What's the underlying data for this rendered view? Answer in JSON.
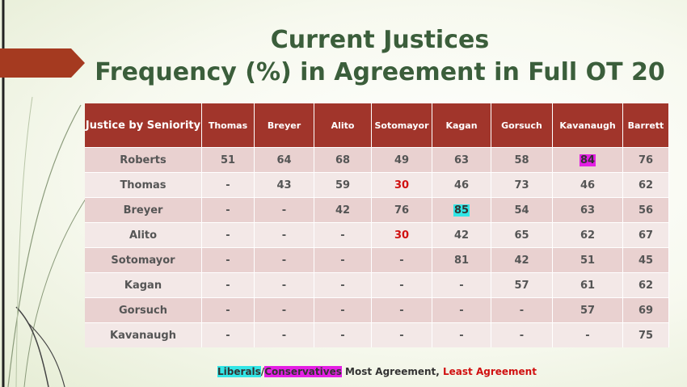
{
  "title": {
    "lines": [
      "Current Justices",
      "Frequency (%) in Agreement in Full OT 20"
    ]
  },
  "table": {
    "header": [
      "Justice by Seniority",
      "Thomas",
      "Breyer",
      "Alito",
      "Sotomayor",
      "Kagan",
      "Gorsuch",
      "Kavanaugh",
      "Barrett"
    ],
    "rows": [
      {
        "cells": [
          {
            "text": "Roberts"
          },
          {
            "text": "51"
          },
          {
            "text": "64"
          },
          {
            "text": "68"
          },
          {
            "text": "49"
          },
          {
            "text": "63"
          },
          {
            "text": "58"
          },
          {
            "text": "84",
            "background": "#e41fe4"
          },
          {
            "text": "76"
          }
        ]
      },
      {
        "cells": [
          {
            "text": "Thomas"
          },
          {
            "text": "-"
          },
          {
            "text": "43"
          },
          {
            "text": "59"
          },
          {
            "text": "30",
            "color": "#d01010"
          },
          {
            "text": "46"
          },
          {
            "text": "73"
          },
          {
            "text": "46"
          },
          {
            "text": "62"
          }
        ]
      },
      {
        "cells": [
          {
            "text": "Breyer"
          },
          {
            "text": "-"
          },
          {
            "text": "-"
          },
          {
            "text": "42"
          },
          {
            "text": "76"
          },
          {
            "text": "85",
            "background": "#33e6e6"
          },
          {
            "text": "54"
          },
          {
            "text": "63"
          },
          {
            "text": "56"
          }
        ]
      },
      {
        "cells": [
          {
            "text": "Alito"
          },
          {
            "text": "-"
          },
          {
            "text": "-"
          },
          {
            "text": "-"
          },
          {
            "text": "30",
            "color": "#d01010"
          },
          {
            "text": "42"
          },
          {
            "text": "65"
          },
          {
            "text": "62"
          },
          {
            "text": "67"
          }
        ]
      },
      {
        "cells": [
          {
            "text": "Sotomayor"
          },
          {
            "text": "-"
          },
          {
            "text": "-"
          },
          {
            "text": "-"
          },
          {
            "text": "-"
          },
          {
            "text": "81"
          },
          {
            "text": "42"
          },
          {
            "text": "51"
          },
          {
            "text": "45"
          }
        ]
      },
      {
        "cells": [
          {
            "text": "Kagan"
          },
          {
            "text": "-"
          },
          {
            "text": "-"
          },
          {
            "text": "-"
          },
          {
            "text": "-"
          },
          {
            "text": "-"
          },
          {
            "text": "57"
          },
          {
            "text": "61"
          },
          {
            "text": "62"
          }
        ]
      },
      {
        "cells": [
          {
            "text": "Gorsuch"
          },
          {
            "text": "-"
          },
          {
            "text": "-"
          },
          {
            "text": "-"
          },
          {
            "text": "-"
          },
          {
            "text": "-"
          },
          {
            "text": "-"
          },
          {
            "text": "57"
          },
          {
            "text": "69"
          }
        ]
      },
      {
        "cells": [
          {
            "text": "Kavanaugh"
          },
          {
            "text": "-"
          },
          {
            "text": "-"
          },
          {
            "text": "-"
          },
          {
            "text": "-"
          },
          {
            "text": "-"
          },
          {
            "text": "-"
          },
          {
            "text": "-"
          },
          {
            "text": "75"
          }
        ]
      }
    ]
  },
  "footer": {
    "parts": [
      {
        "text": "Liberals",
        "background": "#33e6e6"
      },
      {
        "text": "/"
      },
      {
        "text": "Conservatives",
        "background": "#e41fe4"
      },
      {
        "text": " Most Agreement, "
      },
      {
        "text": "Least Agreement",
        "color": "#d01010"
      }
    ]
  }
}
